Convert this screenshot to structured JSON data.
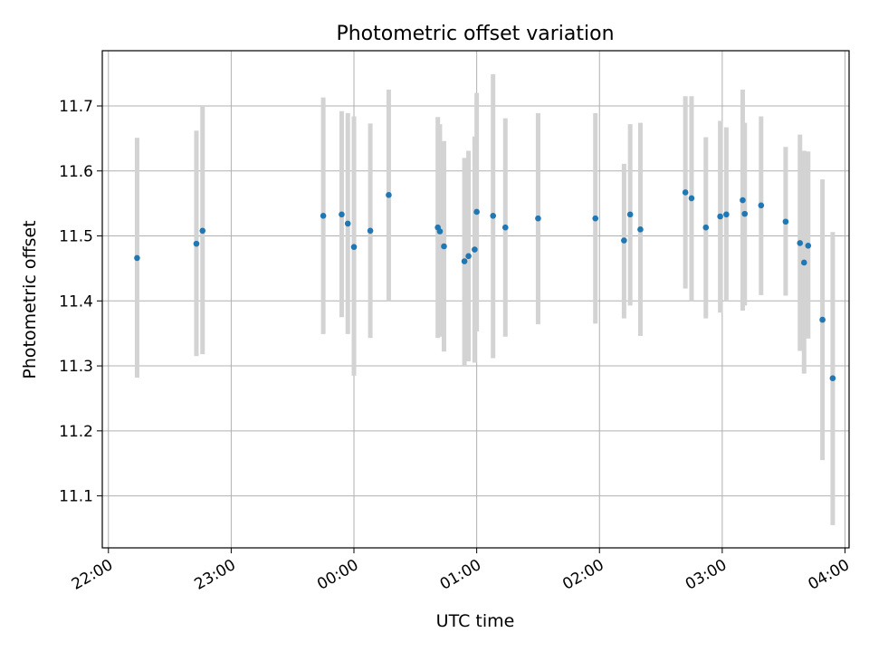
{
  "chart_data": {
    "type": "scatter",
    "title": "Photometric offset variation",
    "xlabel": "UTC time",
    "ylabel": "Photometric offset",
    "x_unit": "UTC",
    "x_range": [
      "21:57",
      "04:02"
    ],
    "ylim": [
      11.02,
      11.785
    ],
    "x_ticks": [
      "22:00",
      "23:00",
      "00:00",
      "01:00",
      "02:00",
      "03:00",
      "04:00"
    ],
    "y_ticks": [
      "11.1",
      "11.2",
      "11.3",
      "11.4",
      "11.5",
      "11.6",
      "11.7"
    ],
    "grid": true,
    "marker_color": "#1f77b4",
    "errorbar_color": "#d3d3d3",
    "points": [
      {
        "t": "22:14",
        "y": 11.466,
        "lo": 11.282,
        "hi": 11.651
      },
      {
        "t": "22:43",
        "y": 11.488,
        "lo": 11.315,
        "hi": 11.662
      },
      {
        "t": "22:46",
        "y": 11.508,
        "lo": 11.318,
        "hi": 11.7
      },
      {
        "t": "23:45",
        "y": 11.531,
        "lo": 11.349,
        "hi": 11.713
      },
      {
        "t": "23:54",
        "y": 11.533,
        "lo": 11.375,
        "hi": 11.692
      },
      {
        "t": "23:57",
        "y": 11.519,
        "lo": 11.349,
        "hi": 11.689
      },
      {
        "t": "00:00",
        "y": 11.483,
        "lo": 11.285,
        "hi": 11.684
      },
      {
        "t": "00:08",
        "y": 11.508,
        "lo": 11.343,
        "hi": 11.673
      },
      {
        "t": "00:17",
        "y": 11.563,
        "lo": 11.4,
        "hi": 11.725
      },
      {
        "t": "00:41",
        "y": 11.513,
        "lo": 11.343,
        "hi": 11.683
      },
      {
        "t": "00:42",
        "y": 11.507,
        "lo": 11.345,
        "hi": 11.672
      },
      {
        "t": "00:44",
        "y": 11.484,
        "lo": 11.322,
        "hi": 11.646
      },
      {
        "t": "00:54",
        "y": 11.461,
        "lo": 11.3,
        "hi": 11.62
      },
      {
        "t": "00:56",
        "y": 11.469,
        "lo": 11.307,
        "hi": 11.631
      },
      {
        "t": "00:59",
        "y": 11.479,
        "lo": 11.305,
        "hi": 11.653
      },
      {
        "t": "01:00",
        "y": 11.537,
        "lo": 11.353,
        "hi": 11.72
      },
      {
        "t": "01:08",
        "y": 11.531,
        "lo": 11.312,
        "hi": 11.749
      },
      {
        "t": "01:14",
        "y": 11.513,
        "lo": 11.345,
        "hi": 11.681
      },
      {
        "t": "01:30",
        "y": 11.527,
        "lo": 11.364,
        "hi": 11.689
      },
      {
        "t": "01:58",
        "y": 11.527,
        "lo": 11.365,
        "hi": 11.689
      },
      {
        "t": "02:12",
        "y": 11.493,
        "lo": 11.373,
        "hi": 11.611
      },
      {
        "t": "02:15",
        "y": 11.533,
        "lo": 11.393,
        "hi": 11.672
      },
      {
        "t": "02:20",
        "y": 11.51,
        "lo": 11.346,
        "hi": 11.674
      },
      {
        "t": "02:42",
        "y": 11.567,
        "lo": 11.419,
        "hi": 11.715
      },
      {
        "t": "02:45",
        "y": 11.558,
        "lo": 11.4,
        "hi": 11.715
      },
      {
        "t": "02:52",
        "y": 11.513,
        "lo": 11.373,
        "hi": 11.652
      },
      {
        "t": "02:59",
        "y": 11.53,
        "lo": 11.382,
        "hi": 11.677
      },
      {
        "t": "03:02",
        "y": 11.533,
        "lo": 11.4,
        "hi": 11.667
      },
      {
        "t": "03:10",
        "y": 11.555,
        "lo": 11.385,
        "hi": 11.725
      },
      {
        "t": "03:11",
        "y": 11.534,
        "lo": 11.393,
        "hi": 11.674
      },
      {
        "t": "03:19",
        "y": 11.547,
        "lo": 11.409,
        "hi": 11.684
      },
      {
        "t": "03:31",
        "y": 11.522,
        "lo": 11.408,
        "hi": 11.637
      },
      {
        "t": "03:38",
        "y": 11.489,
        "lo": 11.323,
        "hi": 11.656
      },
      {
        "t": "03:40",
        "y": 11.459,
        "lo": 11.288,
        "hi": 11.631
      },
      {
        "t": "03:42",
        "y": 11.485,
        "lo": 11.342,
        "hi": 11.63
      },
      {
        "t": "03:49",
        "y": 11.371,
        "lo": 11.155,
        "hi": 11.587
      },
      {
        "t": "03:54",
        "y": 11.281,
        "lo": 11.055,
        "hi": 11.506
      }
    ]
  }
}
